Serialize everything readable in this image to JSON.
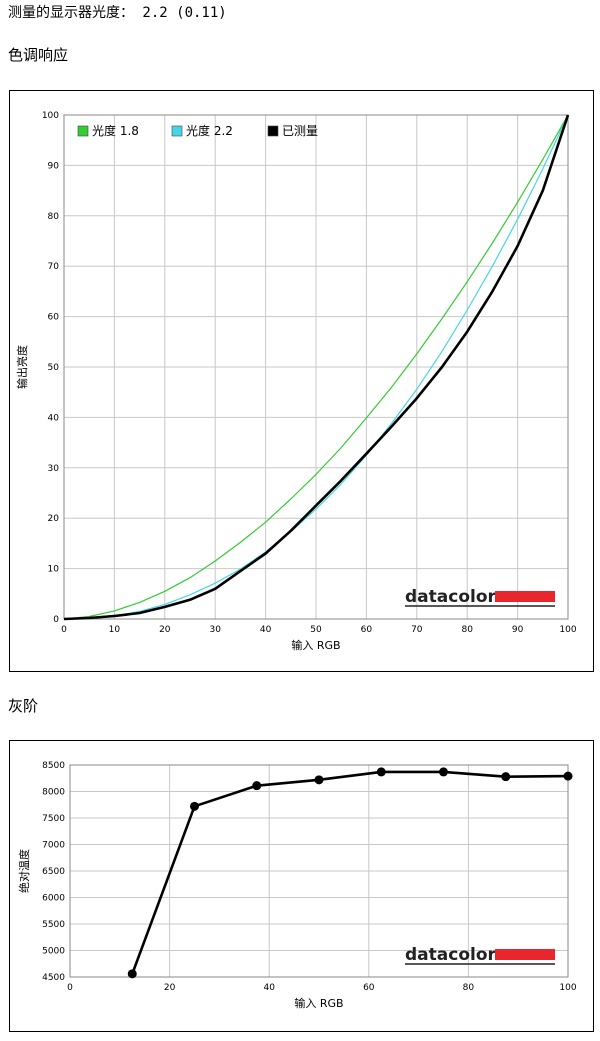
{
  "header": {
    "gamma_label": "测量的显示器光度： 2.2 (0.11)",
    "tone_heading": "色调响应",
    "gray_heading": "灰阶"
  },
  "logo": {
    "text": "datacolor",
    "accent_color": "#e8262b"
  },
  "chart_data": [
    {
      "type": "line",
      "xlabel": "输入 RGB",
      "ylabel": "输出亮度",
      "xlim": [
        0,
        100
      ],
      "ylim": [
        0,
        100
      ],
      "xticks": [
        "0",
        "10",
        "20",
        "30",
        "40",
        "50",
        "60",
        "70",
        "80",
        "90",
        "100"
      ],
      "yticks": [
        "0",
        "10",
        "20",
        "30",
        "40",
        "50",
        "60",
        "70",
        "80",
        "90",
        "100"
      ],
      "grid": true,
      "legend_position": "top-left",
      "series": [
        {
          "name": "光度 1.8",
          "color": "#33cc33",
          "x": [
            0,
            5,
            10,
            15,
            20,
            25,
            30,
            35,
            40,
            45,
            50,
            55,
            60,
            65,
            70,
            75,
            80,
            85,
            90,
            95,
            100
          ],
          "y": [
            0,
            0.5,
            1.6,
            3.3,
            5.5,
            8.2,
            11.5,
            15.2,
            19.2,
            23.8,
            28.7,
            34.0,
            39.9,
            46.0,
            52.6,
            59.6,
            66.9,
            74.6,
            82.7,
            91.2,
            100
          ]
        },
        {
          "name": "光度 2.2",
          "color": "#44d6e6",
          "x": [
            0,
            5,
            10,
            15,
            20,
            25,
            30,
            35,
            40,
            45,
            50,
            55,
            60,
            65,
            70,
            75,
            80,
            85,
            90,
            95,
            100
          ],
          "y": [
            0,
            0.1,
            0.6,
            1.5,
            2.9,
            4.8,
            7.1,
            9.9,
            13.3,
            17.3,
            21.8,
            26.8,
            32.5,
            38.8,
            45.6,
            53.1,
            61.3,
            70.0,
            79.3,
            89.3,
            100
          ]
        },
        {
          "name": "已测量",
          "color": "#000000",
          "x": [
            0,
            5,
            10,
            15,
            20,
            25,
            30,
            35,
            40,
            45,
            50,
            55,
            60,
            65,
            70,
            75,
            80,
            85,
            90,
            95,
            100
          ],
          "y": [
            0,
            0.2,
            0.6,
            1.2,
            2.4,
            3.8,
            6.0,
            9.5,
            13.0,
            17.5,
            22.5,
            27.5,
            32.8,
            38.2,
            43.8,
            50.0,
            57.0,
            65.0,
            74.0,
            85.0,
            100
          ]
        }
      ]
    },
    {
      "type": "line",
      "xlabel": "输入 RGB",
      "ylabel": "绝对温度",
      "xlim": [
        0,
        100
      ],
      "ylim": [
        4500,
        8500
      ],
      "xticks": [
        "0",
        "20",
        "40",
        "60",
        "80",
        "100"
      ],
      "yticks": [
        "4500",
        "5000",
        "5500",
        "6000",
        "6500",
        "7000",
        "7500",
        "8000",
        "8500"
      ],
      "grid": true,
      "series": [
        {
          "color": "#000000",
          "x": [
            12.5,
            25,
            37.5,
            50,
            62.5,
            75,
            87.5,
            100
          ],
          "y": [
            4560,
            7720,
            8110,
            8220,
            8370,
            8370,
            8280,
            8290
          ]
        }
      ]
    }
  ]
}
